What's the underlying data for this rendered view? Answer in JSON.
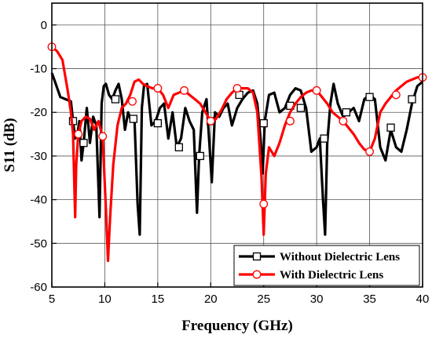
{
  "chart_data": {
    "type": "line",
    "xlabel": "Frequency (GHz)",
    "ylabel": "S11 (dB)",
    "xlim": [
      5,
      40
    ],
    "ylim": [
      -60,
      5
    ],
    "xticks": [
      5,
      10,
      15,
      20,
      25,
      30,
      35,
      40
    ],
    "yticks": [
      0,
      -10,
      -20,
      -30,
      -40,
      -50,
      -60
    ],
    "grid": true,
    "legend_position": "bottom-right",
    "series": [
      {
        "name": "Without Dielectric Lens",
        "color": "#000000",
        "marker": "square",
        "x": [
          5.0,
          5.3,
          5.8,
          6.3,
          6.8,
          7.0,
          7.2,
          7.4,
          7.6,
          7.8,
          8.0,
          8.3,
          8.6,
          8.9,
          9.2,
          9.5,
          9.7,
          9.9,
          10.1,
          10.4,
          10.7,
          11.0,
          11.3,
          11.6,
          11.9,
          12.2,
          12.5,
          12.8,
          13.1,
          13.3,
          13.5,
          13.7,
          14.0,
          14.4,
          14.8,
          15.2,
          15.6,
          16.0,
          16.4,
          16.8,
          17.2,
          17.6,
          18.0,
          18.4,
          18.7,
          18.9,
          19.2,
          19.6,
          19.9,
          20.1,
          20.4,
          20.8,
          21.2,
          21.6,
          22.0,
          22.5,
          23.0,
          23.5,
          24.0,
          24.4,
          24.7,
          24.9,
          25.1,
          25.5,
          26.0,
          26.5,
          27.0,
          27.5,
          28.0,
          28.5,
          29.0,
          29.5,
          30.0,
          30.3,
          30.6,
          30.8,
          31.0,
          31.3,
          31.6,
          32.0,
          32.5,
          33.0,
          33.5,
          34.0,
          34.5,
          35.0,
          35.5,
          36.0,
          36.5,
          37.0,
          37.5,
          38.0,
          38.5,
          39.0,
          39.5,
          40.0
        ],
        "y": [
          -11,
          -13,
          -16.5,
          -17,
          -17.5,
          -22,
          -26,
          -25,
          -22,
          -31,
          -27,
          -19,
          -27,
          -21,
          -23,
          -44,
          -18,
          -14,
          -13.5,
          -16,
          -17,
          -15,
          -13.5,
          -17,
          -24,
          -20,
          -22,
          -21.5,
          -41,
          -48,
          -19,
          -14,
          -13.5,
          -23,
          -22,
          -19,
          -18,
          -26,
          -20,
          -28,
          -26,
          -19,
          -22,
          -24,
          -43,
          -30,
          -20,
          -17,
          -28,
          -36,
          -20,
          -21,
          -19,
          -18,
          -23,
          -19,
          -17,
          -15.5,
          -15,
          -18,
          -26,
          -34,
          -22,
          -16,
          -15.5,
          -20,
          -19,
          -16,
          -14.5,
          -15,
          -19,
          -29,
          -28,
          -26,
          -40,
          -48,
          -27,
          -18,
          -13.5,
          -18,
          -21,
          -20,
          -19,
          -22,
          -17,
          -16,
          -17,
          -28,
          -31,
          -24,
          -28,
          -29,
          -24,
          -18,
          -14,
          -13
        ],
        "marker_x": [
          7.0,
          8.0,
          11.0,
          12.7,
          15.0,
          17.0,
          19.0,
          20.0,
          22.7,
          25.0,
          27.5,
          28.5,
          30.7,
          32.8,
          35.0,
          37.0,
          39.0
        ],
        "marker_y": [
          -22,
          -27,
          -17,
          -21.5,
          -22.5,
          -28,
          -30,
          -22,
          -16,
          -22.5,
          -18.5,
          -19,
          -26,
          -20,
          -16.5,
          -23.5,
          -17
        ]
      },
      {
        "name": "With Dielectric Lens",
        "color": "#ff0000",
        "marker": "circle",
        "x": [
          5.0,
          5.5,
          6.0,
          6.5,
          6.8,
          7.0,
          7.2,
          7.3,
          7.5,
          7.8,
          8.2,
          8.6,
          9.0,
          9.4,
          9.8,
          10.1,
          10.3,
          10.5,
          10.8,
          11.2,
          11.6,
          12.0,
          12.4,
          12.8,
          13.2,
          13.6,
          14.0,
          14.5,
          15.0,
          15.5,
          16.0,
          16.5,
          17.0,
          17.5,
          18.0,
          18.5,
          19.0,
          19.5,
          20.0,
          20.5,
          21.0,
          21.5,
          22.0,
          22.5,
          23.0,
          23.5,
          24.0,
          24.4,
          24.8,
          25.0,
          25.2,
          25.5,
          26.0,
          26.5,
          27.0,
          27.5,
          28.0,
          28.5,
          29.0,
          29.5,
          30.0,
          30.5,
          31.0,
          31.5,
          32.0,
          32.5,
          33.0,
          33.5,
          34.0,
          34.5,
          35.0,
          35.5,
          36.0,
          36.5,
          37.0,
          37.5,
          38.0,
          38.5,
          39.0,
          39.5,
          40.0
        ],
        "y": [
          -5,
          -6,
          -8,
          -15,
          -20,
          -25,
          -44,
          -32,
          -25,
          -22,
          -21,
          -21.5,
          -24,
          -22,
          -25.5,
          -42,
          -54,
          -44,
          -32,
          -23,
          -19,
          -18,
          -16,
          -13,
          -12.5,
          -13.5,
          -14,
          -14.5,
          -14.5,
          -16,
          -19,
          -16,
          -15.5,
          -15,
          -16,
          -17,
          -18,
          -20,
          -22,
          -21.5,
          -19.5,
          -17,
          -15.5,
          -14.5,
          -14.5,
          -14.5,
          -15.5,
          -20,
          -35,
          -48,
          -34,
          -28,
          -30,
          -27,
          -23,
          -20,
          -18,
          -16.5,
          -15.5,
          -15,
          -15,
          -16.5,
          -18,
          -20,
          -21,
          -22,
          -23.5,
          -25,
          -27,
          -28.5,
          -29,
          -26,
          -20,
          -18,
          -16.5,
          -15,
          -14,
          -13,
          -12.5,
          -12,
          -12
        ],
        "marker_x": [
          5.0,
          7.5,
          9.8,
          12.6,
          15.0,
          17.5,
          20.0,
          22.5,
          25.0,
          27.5,
          30.0,
          32.5,
          35.0,
          37.5,
          40.0
        ],
        "marker_y": [
          -5,
          -25,
          -25.5,
          -17.5,
          -14.5,
          -15,
          -22,
          -14.5,
          -41,
          -22,
          -15,
          -22,
          -29,
          -16,
          -12
        ]
      }
    ]
  }
}
